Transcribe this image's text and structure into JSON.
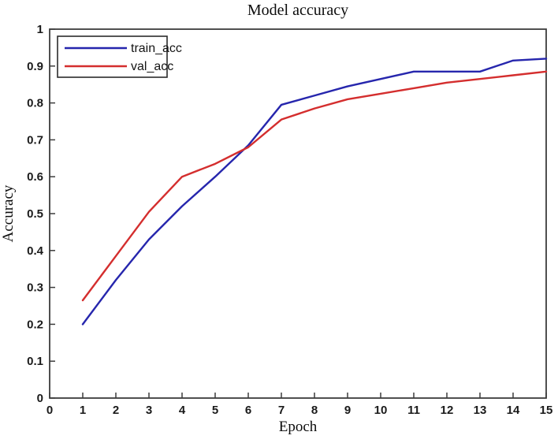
{
  "chart_data": {
    "type": "line",
    "title": "Model accuracy",
    "xlabel": "Epoch",
    "ylabel": "Accuracy",
    "xlim": [
      0,
      15
    ],
    "ylim": [
      0,
      1
    ],
    "grid": "off",
    "legend_position": "top-left",
    "x_tick_labels": [
      "0",
      "1",
      "2",
      "3",
      "4",
      "5",
      "6",
      "7",
      "8",
      "9",
      "10",
      "11",
      "12",
      "13",
      "14",
      "15"
    ],
    "y_tick_labels": [
      "0",
      "0.1",
      "0.2",
      "0.3",
      "0.4",
      "0.5",
      "0.6",
      "0.7",
      "0.8",
      "0.9",
      "1"
    ],
    "x": [
      1,
      2,
      3,
      4,
      5,
      6,
      7,
      8,
      9,
      10,
      11,
      12,
      13,
      14,
      15
    ],
    "series": [
      {
        "name": "train_acc",
        "color": "#2626AD",
        "values": [
          0.2,
          0.32,
          0.43,
          0.52,
          0.6,
          0.685,
          0.795,
          0.82,
          0.845,
          0.865,
          0.885,
          0.885,
          0.885,
          0.915,
          0.92
        ]
      },
      {
        "name": "val_acc",
        "color": "#D42E2E",
        "values": [
          0.265,
          0.385,
          0.505,
          0.6,
          0.635,
          0.68,
          0.755,
          0.785,
          0.81,
          0.825,
          0.84,
          0.855,
          0.865,
          0.875,
          0.885
        ]
      }
    ],
    "axis_color": "#3C3C3C"
  }
}
